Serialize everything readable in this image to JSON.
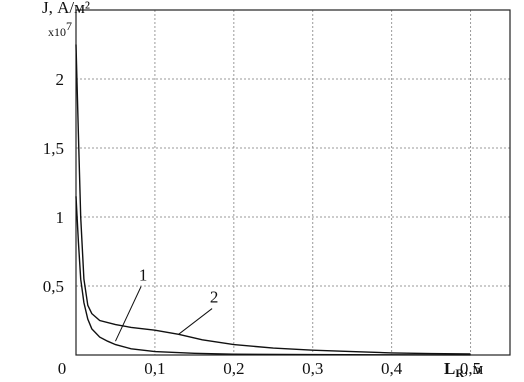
{
  "chart_data": {
    "type": "line",
    "ylabel": "J, А/м²",
    "ylabel_multiplier": "x10",
    "ylabel_multiplier_exp": "7",
    "xlabel_main": "L",
    "xlabel_sub": "R",
    "xlabel_unit": ", м",
    "xlim": [
      0,
      0.55
    ],
    "ylim": [
      0,
      2.5
    ],
    "grid": true,
    "x_ticks": [
      {
        "value": 0,
        "label": "0"
      },
      {
        "value": 0.1,
        "label": "0,1"
      },
      {
        "value": 0.2,
        "label": "0,2"
      },
      {
        "value": 0.3,
        "label": "0,3"
      },
      {
        "value": 0.4,
        "label": "0,4"
      },
      {
        "value": 0.5,
        "label": "0,5"
      }
    ],
    "y_ticks": [
      {
        "value": 0.5,
        "label": "0,5"
      },
      {
        "value": 1,
        "label": "1"
      },
      {
        "value": 1.5,
        "label": "1,5"
      },
      {
        "value": 2,
        "label": "2"
      }
    ],
    "series": [
      {
        "name": "1",
        "x": [
          0,
          0.003,
          0.006,
          0.01,
          0.015,
          0.02,
          0.03,
          0.04,
          0.05,
          0.07,
          0.1,
          0.15,
          0.2,
          0.3,
          0.4,
          0.5
        ],
        "y": [
          1.15,
          0.82,
          0.55,
          0.38,
          0.26,
          0.19,
          0.13,
          0.1,
          0.075,
          0.045,
          0.025,
          0.012,
          0.006,
          0.003,
          0.0015,
          0.001
        ]
      },
      {
        "name": "2",
        "x": [
          0,
          0.003,
          0.006,
          0.01,
          0.015,
          0.02,
          0.03,
          0.05,
          0.07,
          0.1,
          0.13,
          0.16,
          0.2,
          0.25,
          0.3,
          0.35,
          0.4,
          0.45,
          0.5
        ],
        "y": [
          2.25,
          1.6,
          1.0,
          0.55,
          0.36,
          0.3,
          0.25,
          0.22,
          0.2,
          0.18,
          0.15,
          0.11,
          0.075,
          0.05,
          0.035,
          0.025,
          0.015,
          0.01,
          0.007
        ]
      }
    ],
    "annotations": [
      {
        "text": "1",
        "series": 0,
        "point": [
          0.05,
          0.1
        ],
        "label_at": [
          0.085,
          0.54
        ]
      },
      {
        "text": "2",
        "series": 1,
        "point": [
          0.13,
          0.15
        ],
        "label_at": [
          0.175,
          0.38
        ]
      }
    ]
  }
}
